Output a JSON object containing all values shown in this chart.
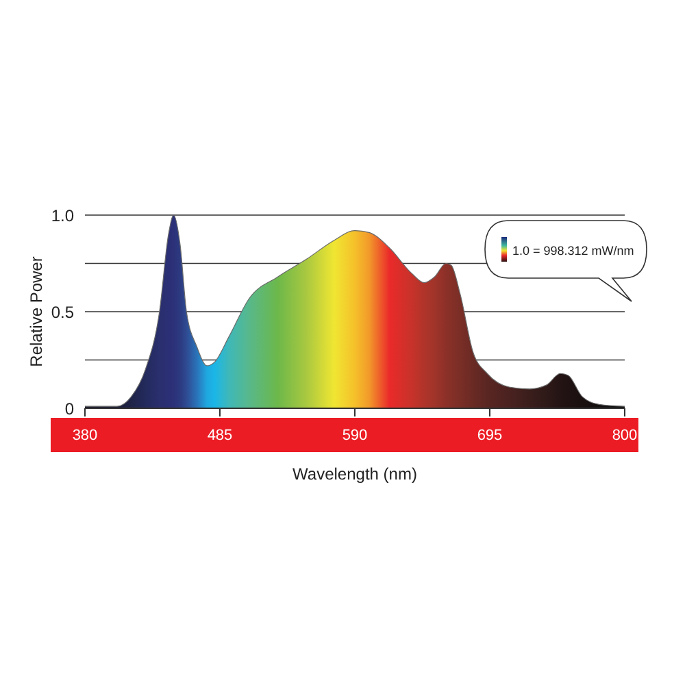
{
  "chart_data": {
    "type": "area",
    "xlabel": "Wavelength (nm)",
    "ylabel": "Relative Power",
    "xlim": [
      380,
      800
    ],
    "xticks": [
      380,
      485,
      590,
      695,
      800
    ],
    "ylim": [
      0,
      1
    ],
    "yticks": [
      0,
      {
        "value": 0.25,
        "label": null
      },
      0.5,
      {
        "value": 0.75,
        "label": null
      },
      {
        "value": 1,
        "label": "1.0"
      }
    ],
    "grid": "y",
    "annotations": [
      "1.0 = 998.312 mW/nm"
    ],
    "series": [
      {
        "x": [
          380,
          405,
          416,
          427,
          438,
          445,
          449,
          454,
          459,
          467,
          475,
          481,
          492,
          508,
          530,
          552,
          574,
          590,
          601,
          617,
          634,
          644,
          652,
          661,
          665,
          672,
          682,
          693,
          710,
          726,
          739,
          750,
          756,
          767,
          780,
          800
        ],
        "values": [
          0.01,
          0.01,
          0.06,
          0.2,
          0.5,
          0.9,
          1.0,
          0.85,
          0.5,
          0.32,
          0.22,
          0.24,
          0.37,
          0.57,
          0.68,
          0.77,
          0.87,
          0.92,
          0.91,
          0.83,
          0.7,
          0.65,
          0.68,
          0.75,
          0.74,
          0.59,
          0.29,
          0.18,
          0.11,
          0.1,
          0.12,
          0.18,
          0.17,
          0.06,
          0.02,
          0.01
        ],
        "colors": [
          "#1a1a2e",
          "#1c1f3a",
          "#1f2448",
          "#232a5c",
          "#2a2f6e",
          "#2b2f75",
          "#2c3178",
          "#2c3a80",
          "#2f4a92",
          "#2a72b8",
          "#1fa8e0",
          "#1bb6e8",
          "#3fb8b8",
          "#58b88a",
          "#6cb84a",
          "#a8c840",
          "#f0e632",
          "#f5c02a",
          "#f29a2a",
          "#ea2a2a",
          "#c8322a",
          "#b0342a",
          "#a0342a",
          "#8c3028",
          "#853028",
          "#7a2e26",
          "#6a2a24",
          "#5a2622",
          "#4a2220",
          "#3a1e1c",
          "#2e1a18",
          "#241414",
          "#201212",
          "#1a1010",
          "#141010",
          "#101010"
        ]
      }
    ]
  }
}
